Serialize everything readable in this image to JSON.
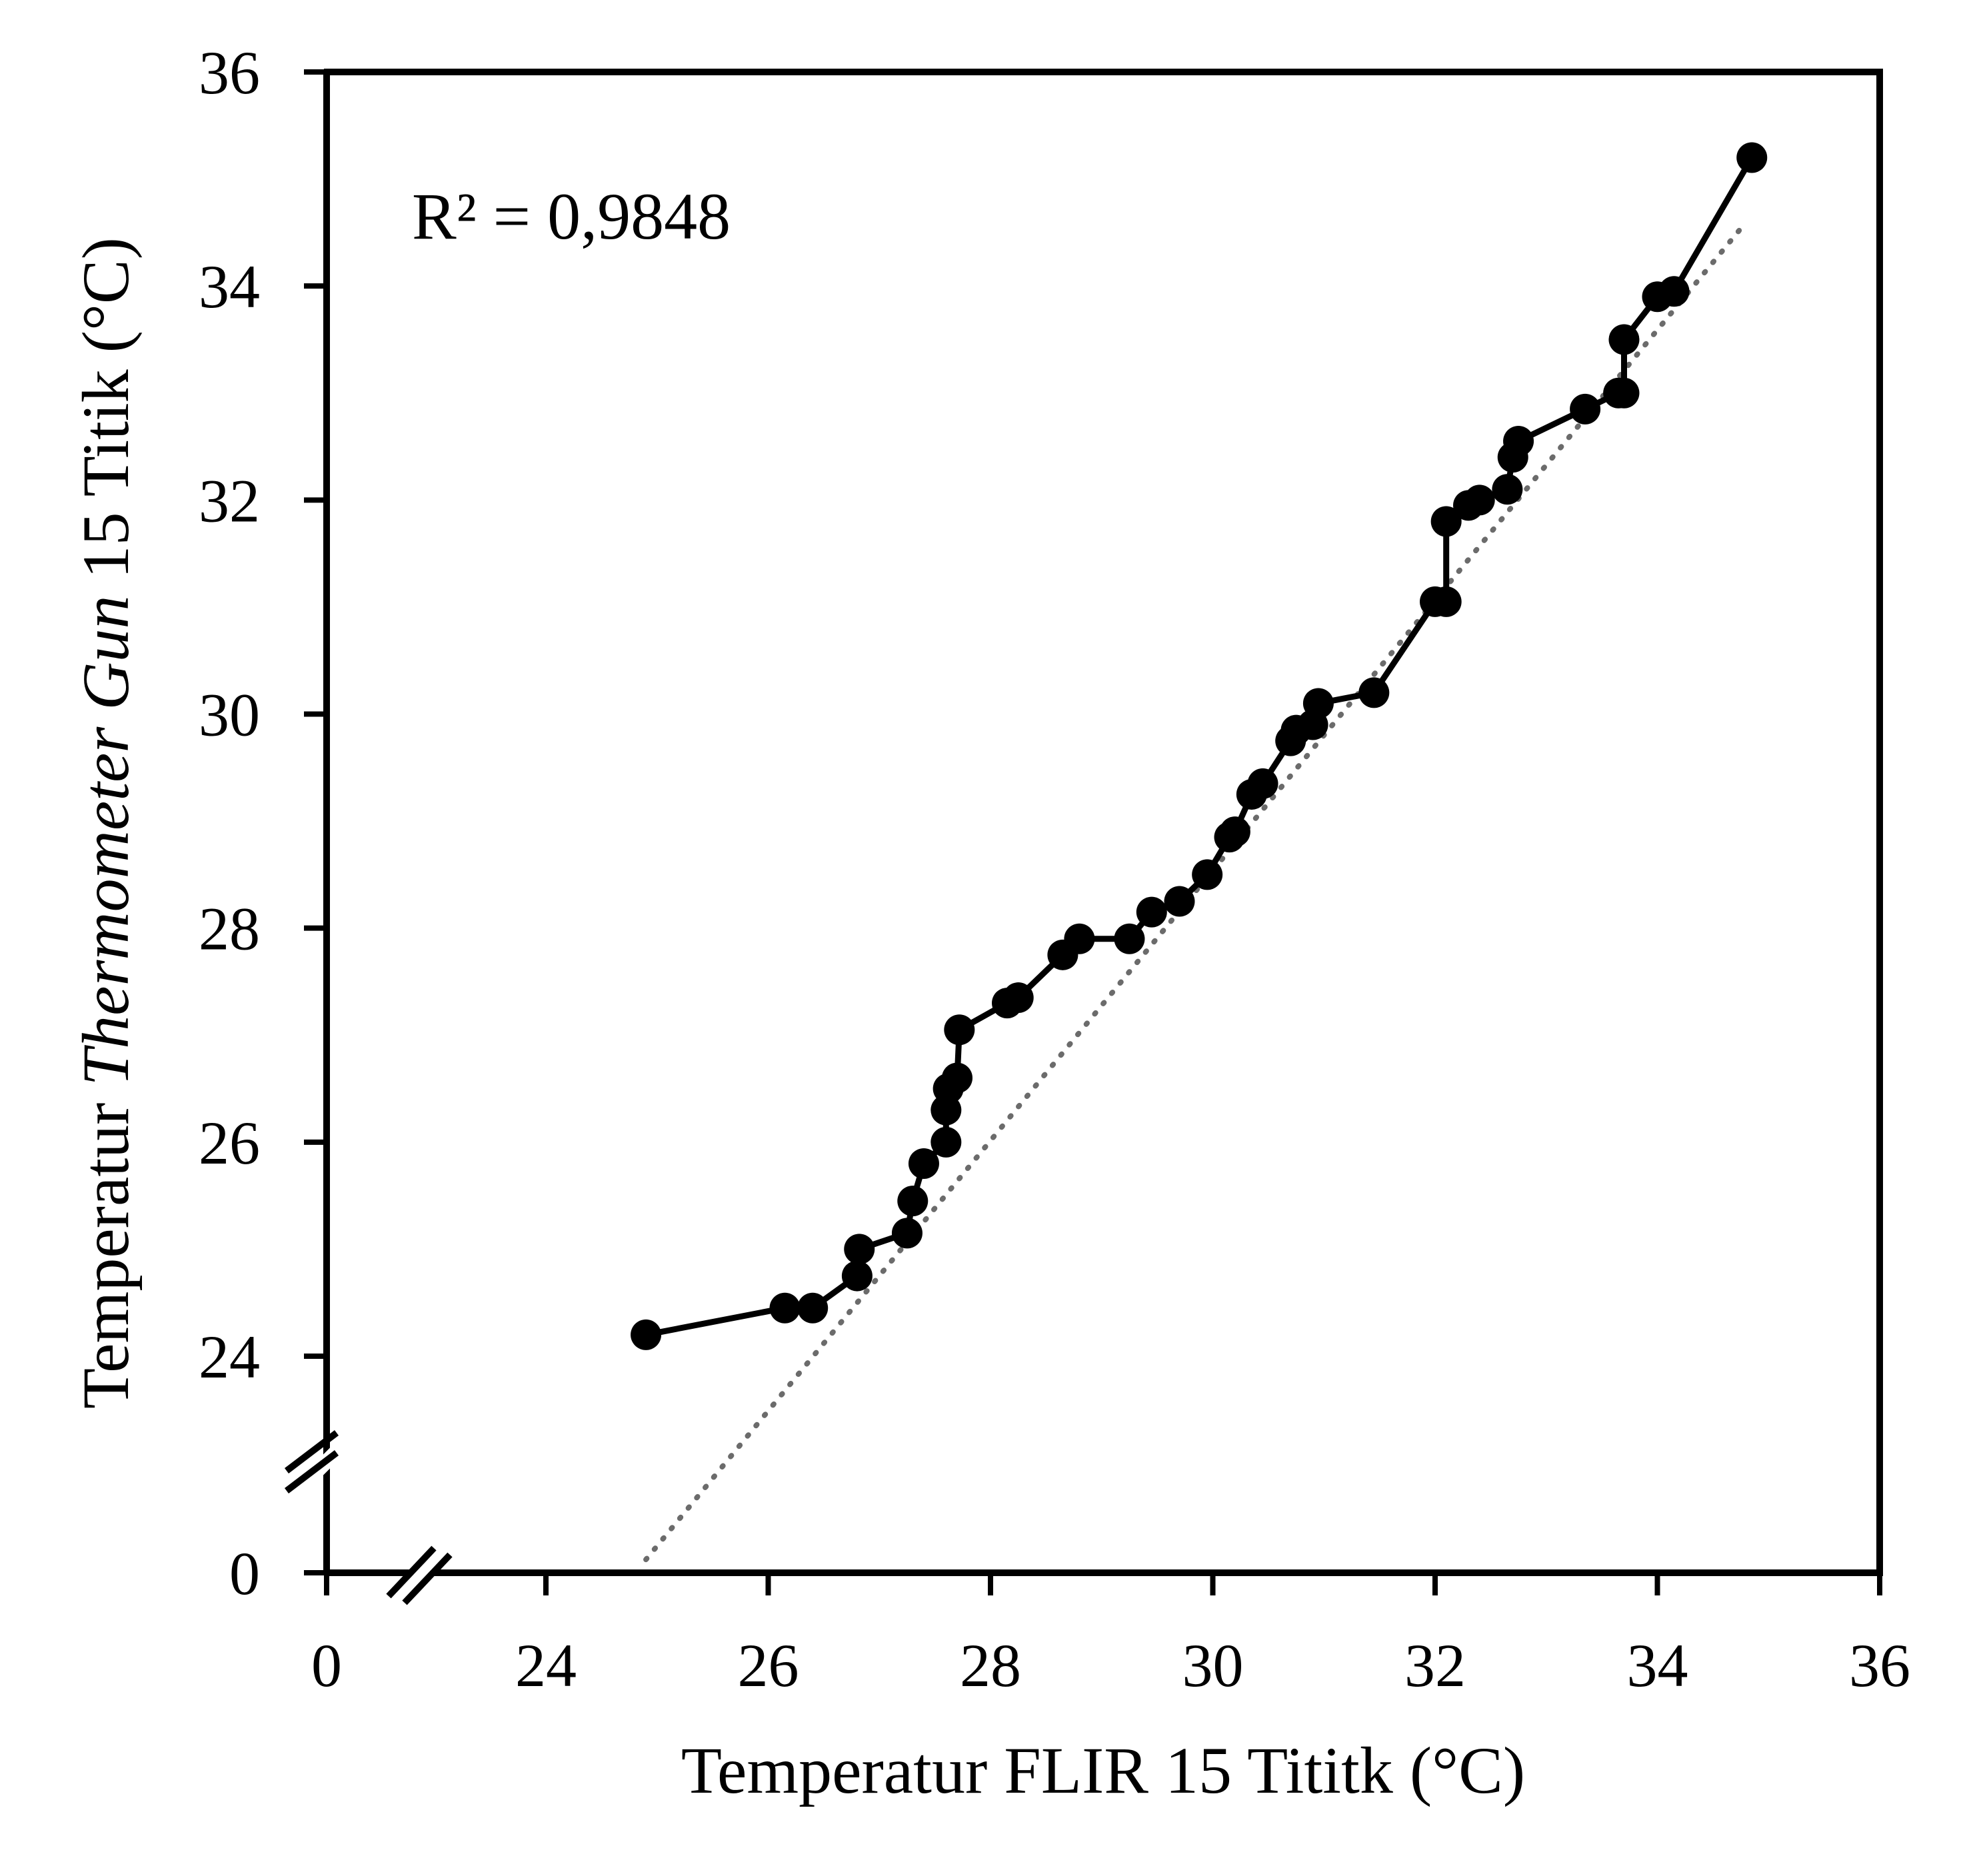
{
  "chart_data": {
    "type": "line",
    "xlabel": "Temperatur FLIR 15 Tititk (°C)",
    "ylabel_parts": [
      "Temperatur ",
      "Thermometer Gun",
      " 15 Titik (°C)"
    ],
    "annotation": "R² = 0,9848",
    "xlim": [
      0,
      36
    ],
    "ylim": [
      0,
      36
    ],
    "axis_break": true,
    "x_ticks": [
      "0",
      "24",
      "26",
      "28",
      "30",
      "32",
      "34",
      "36"
    ],
    "x_tick_values": [
      0,
      24,
      26,
      28,
      30,
      32,
      34,
      36
    ],
    "y_ticks": [
      "0",
      "24",
      "26",
      "28",
      "30",
      "32",
      "34",
      "36"
    ],
    "y_tick_values": [
      0,
      24,
      26,
      28,
      30,
      32,
      34,
      36
    ],
    "series": [
      {
        "points": [
          [
            24.9,
            24.2
          ],
          [
            26.15,
            24.45
          ],
          [
            26.4,
            24.45
          ],
          [
            26.8,
            24.75
          ],
          [
            26.82,
            25.0
          ],
          [
            27.25,
            25.15
          ],
          [
            27.3,
            25.45
          ],
          [
            27.4,
            25.8
          ],
          [
            27.6,
            26.0
          ],
          [
            27.6,
            26.3
          ],
          [
            27.62,
            26.5
          ],
          [
            27.7,
            26.6
          ],
          [
            27.72,
            27.05
          ],
          [
            28.15,
            27.3
          ],
          [
            28.25,
            27.35
          ],
          [
            28.65,
            27.75
          ],
          [
            28.8,
            27.9
          ],
          [
            29.25,
            27.9
          ],
          [
            29.45,
            28.15
          ],
          [
            29.7,
            28.25
          ],
          [
            29.95,
            28.5
          ],
          [
            30.15,
            28.85
          ],
          [
            30.2,
            28.9
          ],
          [
            30.35,
            29.25
          ],
          [
            30.45,
            29.35
          ],
          [
            30.7,
            29.75
          ],
          [
            30.75,
            29.85
          ],
          [
            30.9,
            29.9
          ],
          [
            30.95,
            30.1
          ],
          [
            31.45,
            30.2
          ],
          [
            32.0,
            31.05
          ],
          [
            32.1,
            31.05
          ],
          [
            32.1,
            31.8
          ],
          [
            32.3,
            31.95
          ],
          [
            32.4,
            32.0
          ],
          [
            32.65,
            32.1
          ],
          [
            32.7,
            32.4
          ],
          [
            32.75,
            32.55
          ],
          [
            33.35,
            32.85
          ],
          [
            33.65,
            33.0
          ],
          [
            33.7,
            33.0
          ],
          [
            33.7,
            33.5
          ],
          [
            34.0,
            33.9
          ],
          [
            34.15,
            33.95
          ],
          [
            34.85,
            35.2
          ]
        ]
      }
    ],
    "trendline": {
      "x": [
        24.9,
        34.8
      ],
      "y": [
        22.1,
        34.6
      ]
    }
  }
}
